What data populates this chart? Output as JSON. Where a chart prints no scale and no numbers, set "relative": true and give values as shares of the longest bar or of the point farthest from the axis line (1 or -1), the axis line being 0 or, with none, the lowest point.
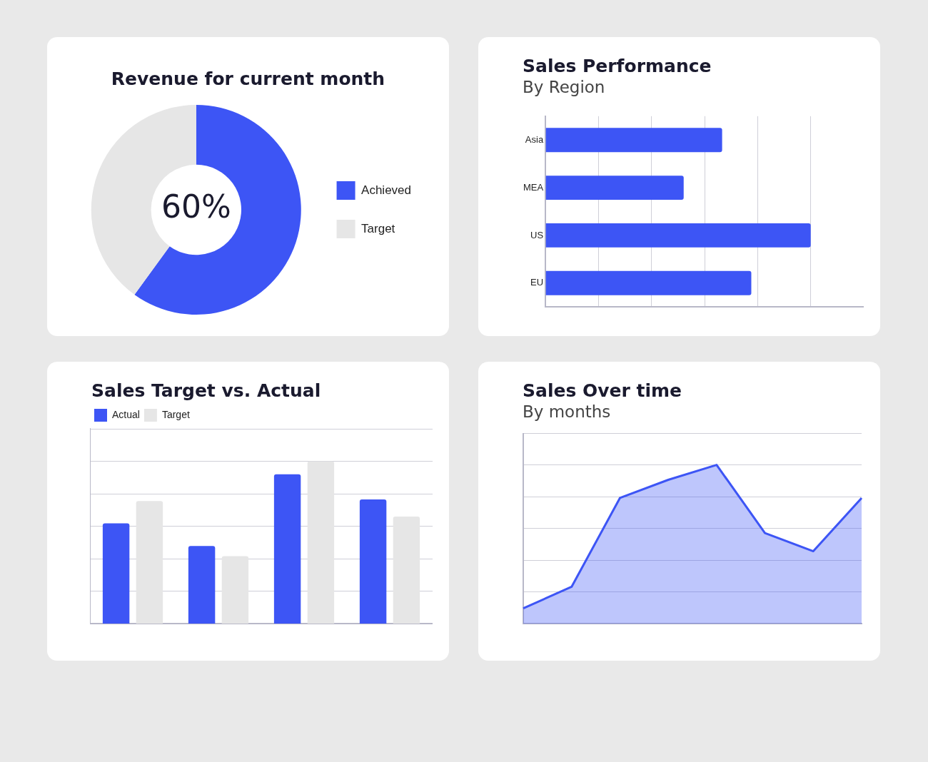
{
  "chart_data": [
    {
      "type": "donut",
      "title": "Revenue for current month",
      "categories": [
        "Achieved",
        "Target"
      ],
      "values": [
        60,
        40
      ],
      "colors": [
        "#3d55f5",
        "#e6e6e6"
      ],
      "legend": "right",
      "annotations": [
        "60%"
      ]
    },
    {
      "type": "bar",
      "title": "Sales Performance",
      "subtitle": "By Region",
      "orientation": "horizontal",
      "categories": [
        "Asia",
        "MEA",
        "US",
        "EU"
      ],
      "values": [
        0.666,
        0.521,
        1,
        0.776
      ],
      "color": "#3d55f5",
      "relative": true,
      "grid": "x"
    },
    {
      "type": "bar",
      "title": "Sales Target vs. Actual",
      "categories": [
        null,
        null,
        null,
        null
      ],
      "series": [
        {
          "name": "Actual",
          "color": "#3d55f5",
          "values": [
            0.618,
            0.479,
            0.92,
            0.765
          ]
        },
        {
          "name": "Target",
          "color": "#e6e6e6",
          "values": [
            0.756,
            0.416,
            1,
            0.66
          ]
        }
      ],
      "relative": true,
      "grid": "y",
      "legend": "top left"
    },
    {
      "type": "area",
      "title": "Sales Over time",
      "subtitle": "By months",
      "categories": [
        null,
        null,
        null,
        null,
        null,
        null,
        null,
        null
      ],
      "values": [
        0.098,
        0.233,
        0.792,
        0.906,
        1,
        0.571,
        0.457,
        0.792
      ],
      "color": "#3d55f5",
      "relative": true,
      "grid": "y"
    }
  ]
}
